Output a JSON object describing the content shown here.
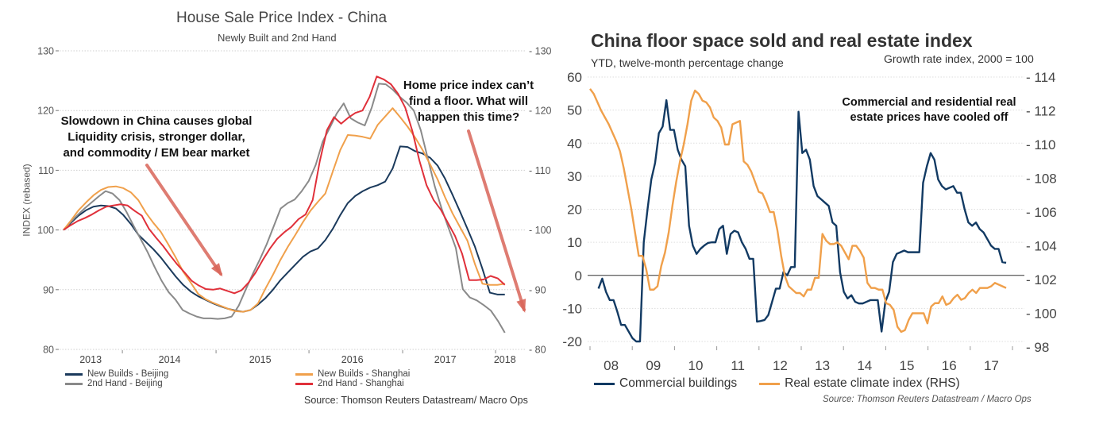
{
  "chart_data": [
    {
      "type": "line",
      "title": "House Sale Price Index - China",
      "subtitle": "Newly Built and 2nd Hand",
      "ylabel": "INDEX (rebased)",
      "xlabel": "",
      "ylim": [
        80,
        130
      ],
      "yticks": [
        80,
        90,
        100,
        110,
        120,
        130
      ],
      "y2ticks": [
        80,
        90,
        100,
        110,
        120,
        130
      ],
      "xtick_labels": [
        {
          "label": "2013",
          "month": 3.5
        },
        {
          "label": "2014",
          "month": 13.7
        },
        {
          "label": "2015",
          "month": 25.4
        },
        {
          "label": "2016",
          "month": 37.3
        },
        {
          "label": "2017",
          "month": 49.3
        },
        {
          "label": "2018",
          "month": 57
        }
      ],
      "xtick_marks_month": [
        7.6,
        19.7,
        31.7,
        43.8,
        55.8
      ],
      "x_months_range": [
        0,
        58
      ],
      "grid": true,
      "legend_position": "bottom",
      "series": [
        {
          "name": "New Builds - Beijing",
          "color": "#1b3a5c",
          "values": [
            100,
            101.2,
            102.4,
            103.3,
            103.9,
            104.1,
            104.0,
            103.6,
            102.5,
            101,
            99.2,
            98,
            96.8,
            95.4,
            93.8,
            92.2,
            90.8,
            89.7,
            88.9,
            88.3,
            87.7,
            87.2,
            86.8,
            86.5,
            86.3,
            86.6,
            87.5,
            88.6,
            90,
            91.6,
            92.9,
            94.2,
            95.5,
            96.4,
            96.9,
            98.3,
            100.2,
            102.5,
            104.5,
            105.7,
            106.5,
            107.1,
            107.5,
            108.1,
            110.3,
            114,
            113.9,
            113.2,
            112.8,
            112.1,
            110.8,
            108.6,
            105.9,
            103.1,
            100.2,
            97.2,
            93.5,
            89.5,
            89.2,
            89.2
          ]
        },
        {
          "name": "2nd Hand - Beijing",
          "color": "#8a8a8a",
          "values": [
            100,
            101.3,
            102.5,
            103.6,
            104.6,
            105.6,
            106.5,
            106.1,
            105,
            103,
            100.7,
            98.5,
            96.3,
            93.8,
            91.5,
            89.6,
            88.3,
            86.6,
            86,
            85.5,
            85.2,
            85.2,
            85.1,
            85.2,
            85.5,
            87.3,
            90,
            92.6,
            95,
            97.6,
            100.6,
            103.6,
            104.5,
            105.1,
            106.5,
            108.2,
            110.9,
            114.8,
            117.1,
            119.5,
            121.2,
            118.7,
            118,
            117.5,
            120.5,
            124.5,
            124.4,
            123.5,
            122.3,
            121.3,
            120,
            116.7,
            112,
            107.3,
            103.5,
            100.2,
            97,
            90.1,
            88.7,
            88.2,
            87.4,
            86.5,
            84.8,
            82.8
          ]
        },
        {
          "name": "New Builds - Shanghai",
          "color": "#f0a04b",
          "values": [
            100,
            101.6,
            103.3,
            104.6,
            105.8,
            106.7,
            107.2,
            107.3,
            107,
            106.3,
            105,
            102.9,
            101.2,
            99.7,
            97.6,
            95.4,
            93,
            91.2,
            89.3,
            88.4,
            87.8,
            87.3,
            86.8,
            86.4,
            86.3,
            86.6,
            87.7,
            90.2,
            92.5,
            95,
            97.2,
            99.2,
            101.3,
            103.2,
            104.7,
            106.1,
            109.8,
            113.4,
            115.9,
            115.8,
            115.6,
            115.3,
            117.6,
            119,
            120.4,
            118.9,
            117.3,
            115.5,
            113.4,
            111,
            108.5,
            105.5,
            102.8,
            100.5,
            98.2,
            94.3,
            91,
            90.8,
            90.8,
            91
          ]
        },
        {
          "name": "2nd Hand - Shanghai",
          "color": "#e0303a",
          "values": [
            100,
            100.8,
            101.5,
            102,
            102.6,
            103.3,
            103.9,
            104.1,
            104.3,
            104.1,
            103.2,
            102.4,
            100.2,
            98.7,
            97.3,
            95.7,
            94.2,
            92.9,
            91.5,
            90.7,
            90.1,
            90,
            90.2,
            89.8,
            89.4,
            89.9,
            91.2,
            92.9,
            95,
            96.9,
            98.5,
            99.6,
            100.5,
            101.8,
            102.6,
            105,
            111.5,
            116.7,
            118.9,
            117.8,
            118.8,
            119.6,
            120,
            122.3,
            125.7,
            125.2,
            124.4,
            122.8,
            120.5,
            116.6,
            111.6,
            107.5,
            105,
            103.4,
            101.2,
            99,
            96,
            91.6,
            91.6,
            91.7,
            92.3,
            91.9,
            90.8
          ]
        }
      ],
      "annotations": [
        "Slowdown in China causes global Liquidity crisis, stronger dollar, and commodity / EM bear market",
        "Home price index can’t find a floor. What will happen this time?"
      ],
      "source": "Source: Thomson Reuters Datastream/ Macro Ops"
    },
    {
      "type": "line",
      "title": "China floor space sold and real estate index",
      "subtitle_left": "YTD, twelve-month percentage change",
      "subtitle_right": "Growth rate index, 2000 = 100",
      "ylim": [
        -20,
        60
      ],
      "yticks": [
        -20,
        -10,
        0,
        10,
        20,
        30,
        40,
        50,
        60
      ],
      "y2lim": [
        98,
        114
      ],
      "y2ticks": [
        98,
        100,
        102,
        104,
        106,
        108,
        110,
        112,
        114
      ],
      "xtick_labels": [
        "08",
        "09",
        "10",
        "11",
        "12",
        "13",
        "14",
        "15",
        "16",
        "17"
      ],
      "x_year_range": [
        2008,
        2018.1
      ],
      "grid": true,
      "legend_position": "bottom",
      "series": [
        {
          "name": "Commercial buildings",
          "color": "#123a63",
          "axis": "left",
          "start": 2008.2,
          "values": [
            -4,
            -1,
            -5,
            -7.5,
            -7.5,
            -11,
            -15,
            -15,
            -17,
            -19,
            -20,
            -20,
            10,
            20,
            29,
            34,
            43,
            45,
            53,
            44,
            44,
            38,
            35,
            33,
            15,
            9,
            6.5,
            8,
            9,
            9.8,
            10,
            10,
            14,
            15,
            6.5,
            12.5,
            13.5,
            13,
            10,
            8,
            5,
            5,
            -14,
            -13.8,
            -13.5,
            -12,
            -8,
            -4,
            -4,
            1,
            0,
            2.5,
            2.5,
            49.5,
            37,
            38,
            35,
            27,
            24,
            23,
            22,
            21,
            16,
            15,
            1,
            -5,
            -7,
            -6,
            -8,
            -8.5,
            -8.5,
            -8,
            -7.5,
            -7.5,
            -7.5,
            -17,
            -8,
            -5,
            4,
            6.5,
            7,
            7.5,
            7,
            7,
            7,
            7,
            28,
            33,
            37,
            35,
            29,
            27,
            26,
            26.5,
            27,
            25,
            25,
            20,
            16,
            15,
            16,
            14,
            13,
            11,
            9,
            8,
            8,
            4,
            3.8
          ]
        },
        {
          "name": "Real estate climate index (RHS)",
          "color": "#f0a04b",
          "axis": "right",
          "start": 2008.0,
          "values": [
            113.3,
            113,
            112.5,
            112,
            111.6,
            111.2,
            110.7,
            110.2,
            109.6,
            108.6,
            107.4,
            106.2,
            104.8,
            103.4,
            103.4,
            102.6,
            101.4,
            101.4,
            101.6,
            102.8,
            103.6,
            104.8,
            106.4,
            107.8,
            109,
            110,
            111.2,
            112.6,
            113.2,
            113,
            112.6,
            112.5,
            112.2,
            111.6,
            111.4,
            111,
            110,
            110,
            111.2,
            111.3,
            111.4,
            109,
            108.8,
            108.4,
            107.8,
            107.2,
            107.1,
            106.6,
            106,
            106,
            104.9,
            103.4,
            102.2,
            101.6,
            101.4,
            101.2,
            101.2,
            101,
            101.4,
            101.4,
            102.1,
            102.1,
            104.7,
            104.3,
            104.1,
            104.1,
            104.2,
            104,
            103.6,
            103.2,
            104,
            104,
            103.7,
            103.3,
            101.8,
            101.5,
            101.5,
            101.4,
            101.4,
            100.6,
            100.5,
            100.2,
            99.2,
            98.9,
            99,
            99.6,
            100,
            100,
            100,
            100,
            99.4,
            100.4,
            100.6,
            100.6,
            101,
            100.5,
            100.6,
            100.9,
            101.1,
            100.8,
            100.9,
            101.2,
            101.4,
            101.2,
            101.5,
            101.5,
            101.5,
            101.6,
            101.8,
            101.7,
            101.6,
            101.5
          ]
        }
      ],
      "annotations": [
        "Commercial and residential real estate prices have cooled off"
      ],
      "source": "Source: Thomson Reuters Datastream / Macro Ops"
    }
  ]
}
